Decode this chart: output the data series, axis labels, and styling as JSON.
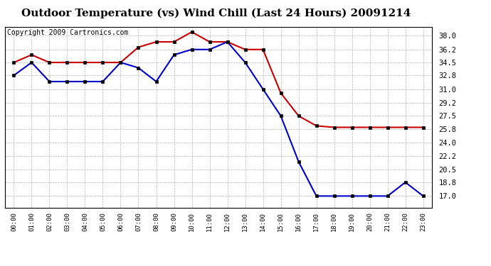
{
  "title": "Outdoor Temperature (vs) Wind Chill (Last 24 Hours) 20091214",
  "copyright": "Copyright 2009 Cartronics.com",
  "x_labels": [
    "00:00",
    "01:00",
    "02:00",
    "03:00",
    "04:00",
    "05:00",
    "06:00",
    "07:00",
    "08:00",
    "09:00",
    "10:00",
    "11:00",
    "12:00",
    "13:00",
    "14:00",
    "15:00",
    "16:00",
    "17:00",
    "18:00",
    "19:00",
    "20:00",
    "21:00",
    "22:00",
    "23:00"
  ],
  "temp_red": [
    34.5,
    35.5,
    34.5,
    34.5,
    34.5,
    34.5,
    34.5,
    36.5,
    37.2,
    37.2,
    38.5,
    37.2,
    37.2,
    36.2,
    36.2,
    30.5,
    27.5,
    26.2,
    26.0,
    26.0,
    26.0,
    26.0,
    26.0,
    26.0
  ],
  "temp_blue": [
    32.8,
    34.5,
    32.0,
    32.0,
    32.0,
    32.0,
    34.5,
    33.8,
    32.0,
    35.5,
    36.2,
    36.2,
    37.2,
    34.5,
    31.0,
    27.5,
    21.5,
    17.0,
    17.0,
    17.0,
    17.0,
    17.0,
    18.8,
    17.0
  ],
  "ylim_min": 15.5,
  "ylim_max": 39.2,
  "yticks": [
    17.0,
    18.8,
    20.5,
    22.2,
    24.0,
    25.8,
    27.5,
    29.2,
    31.0,
    32.8,
    34.5,
    36.2,
    38.0
  ],
  "red_color": "#cc0000",
  "blue_color": "#0000cc",
  "bg_color": "#ffffff",
  "grid_color": "#aaaaaa",
  "title_fontsize": 11,
  "copyright_fontsize": 7,
  "tick_fontsize": 7.5,
  "xtick_fontsize": 6.5
}
